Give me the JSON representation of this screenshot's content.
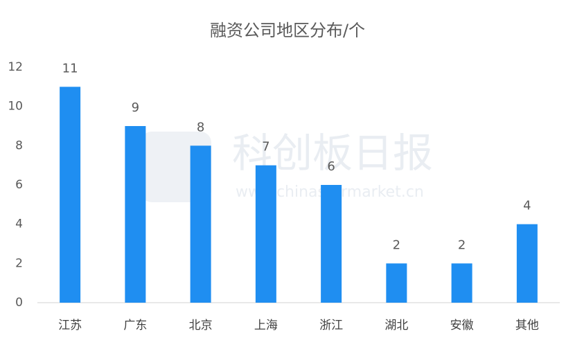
{
  "chart_data": {
    "type": "bar",
    "title": "融资公司地区分布/个",
    "categories": [
      "江苏",
      "广东",
      "北京",
      "上海",
      "浙江",
      "湖北",
      "安徽",
      "其他"
    ],
    "values": [
      11,
      9,
      8,
      7,
      6,
      2,
      2,
      4
    ],
    "color": "#1f8ef1",
    "ylim": [
      0,
      12
    ],
    "yticks": [
      0,
      2,
      4,
      6,
      8,
      10,
      12
    ],
    "grid": false
  },
  "watermark": {
    "text": "科创板日报",
    "url": "www.chinastarmarket.cn"
  }
}
